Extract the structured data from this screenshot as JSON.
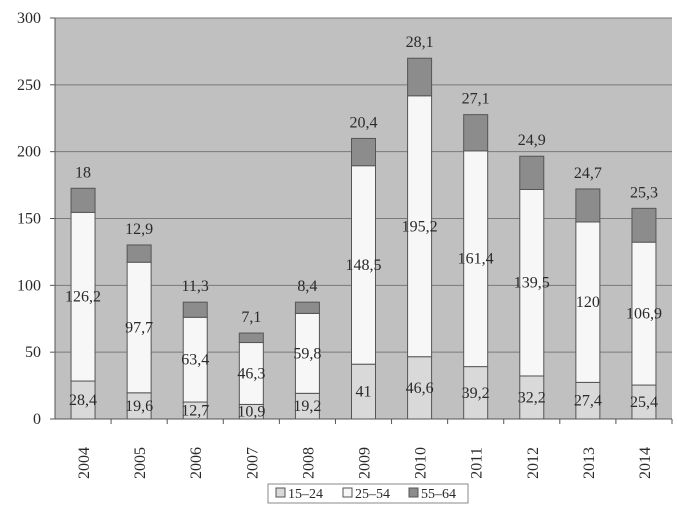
{
  "chart_data": {
    "type": "bar",
    "stacked": true,
    "categories": [
      "2004",
      "2005",
      "2006",
      "2007",
      "2008",
      "2009",
      "2010",
      "2011",
      "2012",
      "2013",
      "2014"
    ],
    "series": [
      {
        "name": "15–24",
        "values": [
          28.4,
          19.6,
          12.7,
          10.9,
          19.2,
          41,
          46.6,
          39.2,
          32.2,
          27.4,
          25.4
        ],
        "labels": [
          "28,4",
          "19,6",
          "12,7",
          "10,9",
          "19,2",
          "41",
          "46,6",
          "39,2",
          "32,2",
          "27,4",
          "25,4"
        ],
        "color": "#d9d9d9"
      },
      {
        "name": "25–54",
        "values": [
          126.2,
          97.7,
          63.4,
          46.3,
          59.8,
          148.5,
          195.2,
          161.4,
          139.5,
          120,
          106.9
        ],
        "labels": [
          "126,2",
          "97,7",
          "63,4",
          "46,3",
          "59,8",
          "148,5",
          "195,2",
          "161,4",
          "139,5",
          "120",
          "106,9"
        ],
        "color": "#f7f7f7"
      },
      {
        "name": "55–64",
        "values": [
          18,
          12.9,
          11.3,
          7.1,
          8.4,
          20.4,
          28.1,
          27.1,
          24.9,
          24.7,
          25.3
        ],
        "labels": [
          "18",
          "12,9",
          "11,3",
          "7,1",
          "8,4",
          "20,4",
          "28,1",
          "27,1",
          "24,9",
          "24,7",
          "25,3"
        ],
        "color": "#8c8c8c"
      }
    ],
    "yticks": [
      "0",
      "50",
      "100",
      "150",
      "200",
      "250",
      "300"
    ],
    "ylim": [
      0,
      300
    ],
    "grid": true,
    "plot_background": "#c0c0c0",
    "legend_position": "bottom"
  }
}
